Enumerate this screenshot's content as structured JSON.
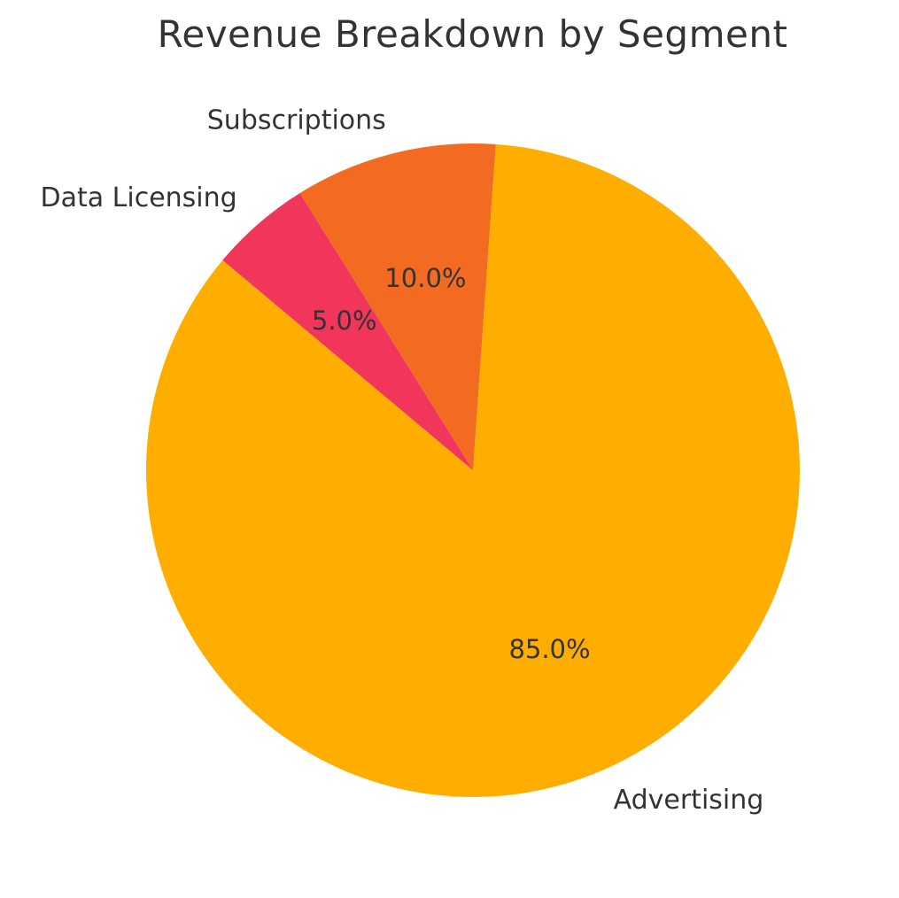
{
  "chart_data": {
    "type": "pie",
    "title": "Revenue Breakdown by Segment",
    "start_angle_deg": 140,
    "direction": "counterclockwise",
    "slices": [
      {
        "label": "Advertising",
        "value": 85.0,
        "pct_label": "85.0%",
        "color": "#FFAE00"
      },
      {
        "label": "Subscriptions",
        "value": 10.0,
        "pct_label": "10.0%",
        "color": "#F26B21"
      },
      {
        "label": "Data Licensing",
        "value": 5.0,
        "pct_label": "5.0%",
        "color": "#F2355B"
      }
    ]
  }
}
